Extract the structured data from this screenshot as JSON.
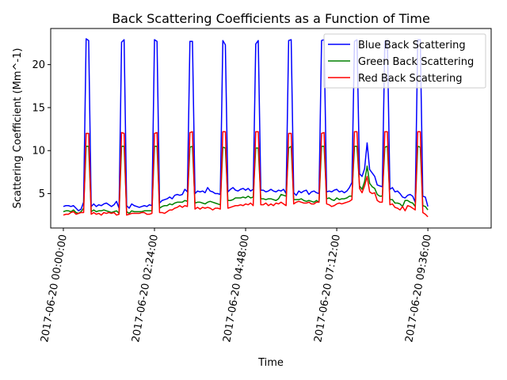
{
  "chart_data": {
    "type": "line",
    "title": "Back Scattering Coefficients as a Function of Time",
    "xlabel": "Time",
    "ylabel": "Scattering Coefficient (Mm^-1)",
    "x_start_label": "2017-06-20 00:00:00",
    "x_step_minutes": 4,
    "xlim_minutes": [
      -20,
      676
    ],
    "ylim": [
      1.0,
      24.2
    ],
    "yticks": [
      5,
      10,
      15,
      20
    ],
    "xticks": [
      {
        "minutes": 0,
        "label": "2017-06-20 00:00:00"
      },
      {
        "minutes": 144,
        "label": "2017-06-20 02:24:00"
      },
      {
        "minutes": 288,
        "label": "2017-06-20 04:48:00"
      },
      {
        "minutes": 432,
        "label": "2017-06-20 07:12:00"
      },
      {
        "minutes": 576,
        "label": "2017-06-20 09:36:00"
      }
    ],
    "legend_position": "upper right",
    "grid": false,
    "series": [
      {
        "name": "Blue Back Scattering",
        "color": "#0000ff",
        "values": [
          3.5,
          3.6,
          3.6,
          3.5,
          3.6,
          3.3,
          3.0,
          3.2,
          4.0,
          23.0,
          22.8,
          3.5,
          3.8,
          3.5,
          3.7,
          3.6,
          3.8,
          3.9,
          3.7,
          3.5,
          3.7,
          4.1,
          3.3,
          22.6,
          22.9,
          3.6,
          3.3,
          3.8,
          3.6,
          3.5,
          3.4,
          3.5,
          3.6,
          3.5,
          3.7,
          3.6,
          22.9,
          22.7,
          3.9,
          4.2,
          4.3,
          4.4,
          4.6,
          4.4,
          4.8,
          4.9,
          4.8,
          4.9,
          5.5,
          5.2,
          22.7,
          22.7,
          5.0,
          5.3,
          5.2,
          5.3,
          5.1,
          5.7,
          5.3,
          5.2,
          5.0,
          5.0,
          4.9,
          22.8,
          22.3,
          5.2,
          5.5,
          5.7,
          5.4,
          5.3,
          5.5,
          5.6,
          5.4,
          5.6,
          5.3,
          5.5,
          22.4,
          22.8,
          5.4,
          5.4,
          5.2,
          5.3,
          5.5,
          5.3,
          5.2,
          5.4,
          5.3,
          5.5,
          5.0,
          22.8,
          22.9,
          5.1,
          4.8,
          5.3,
          5.1,
          5.3,
          5.4,
          4.9,
          5.2,
          5.3,
          5.1,
          5.0,
          22.8,
          22.9,
          5.2,
          5.3,
          5.2,
          5.4,
          5.5,
          5.2,
          5.3,
          5.1,
          5.3,
          5.7,
          6.3,
          22.7,
          22.9,
          7.3,
          7.0,
          7.9,
          10.9,
          7.8,
          7.4,
          7.0,
          6.0,
          5.9,
          5.8,
          22.7,
          22.9,
          5.5,
          5.7,
          5.2,
          5.3,
          5.0,
          4.6,
          4.5,
          4.8,
          4.9,
          4.7,
          4.0,
          22.9,
          22.9,
          4.7,
          4.6,
          3.5
        ]
      },
      {
        "name": "Green Back Scattering",
        "color": "#008000",
        "values": [
          2.9,
          3.0,
          3.0,
          2.9,
          3.1,
          2.8,
          2.7,
          2.9,
          3.3,
          10.5,
          10.5,
          2.9,
          3.1,
          2.9,
          3.0,
          3.0,
          3.1,
          3.0,
          2.9,
          2.8,
          2.9,
          3.0,
          2.7,
          10.5,
          10.5,
          2.9,
          2.7,
          3.0,
          2.9,
          2.9,
          2.9,
          2.9,
          3.0,
          3.0,
          3.0,
          3.0,
          10.5,
          10.5,
          3.3,
          3.5,
          3.6,
          3.6,
          3.8,
          3.7,
          3.9,
          4.0,
          4.0,
          4.0,
          4.2,
          4.1,
          10.4,
          10.5,
          3.9,
          4.0,
          4.0,
          3.9,
          3.8,
          4.0,
          4.1,
          4.0,
          3.9,
          3.8,
          3.7,
          10.4,
          10.3,
          4.2,
          4.2,
          4.3,
          4.5,
          4.5,
          4.5,
          4.6,
          4.5,
          4.7,
          4.5,
          4.6,
          10.3,
          10.3,
          4.4,
          4.4,
          4.3,
          4.4,
          4.4,
          4.3,
          4.2,
          4.4,
          4.9,
          4.8,
          4.7,
          10.3,
          10.5,
          4.3,
          4.3,
          4.3,
          4.4,
          4.2,
          4.1,
          4.2,
          4.1,
          4.0,
          4.2,
          4.0,
          10.5,
          10.5,
          4.4,
          4.5,
          4.3,
          4.2,
          4.5,
          4.3,
          4.4,
          4.4,
          4.5,
          4.7,
          4.7,
          10.5,
          10.5,
          5.9,
          5.5,
          6.4,
          8.2,
          6.2,
          5.8,
          5.6,
          4.9,
          4.7,
          4.7,
          10.4,
          10.5,
          4.3,
          4.3,
          3.9,
          3.9,
          3.8,
          3.5,
          4.2,
          4.2,
          4.0,
          3.9,
          3.5,
          10.5,
          10.4,
          3.6,
          3.5,
          3.1
        ]
      },
      {
        "name": "Red Back Scattering",
        "color": "#ff0000",
        "values": [
          2.5,
          2.6,
          2.6,
          2.8,
          2.9,
          2.6,
          2.7,
          2.8,
          2.8,
          12.0,
          12.0,
          2.6,
          2.8,
          2.6,
          2.7,
          2.5,
          2.8,
          2.7,
          2.8,
          2.7,
          2.8,
          2.5,
          2.6,
          12.1,
          12.0,
          2.5,
          2.6,
          2.7,
          2.7,
          2.7,
          2.7,
          2.8,
          2.8,
          2.6,
          2.6,
          2.7,
          12.0,
          12.1,
          2.8,
          2.8,
          2.7,
          2.9,
          3.1,
          3.1,
          3.3,
          3.4,
          3.6,
          3.4,
          3.6,
          3.5,
          12.1,
          12.2,
          3.2,
          3.4,
          3.2,
          3.4,
          3.3,
          3.4,
          3.3,
          3.1,
          3.3,
          3.3,
          3.2,
          12.2,
          12.2,
          3.3,
          3.4,
          3.5,
          3.6,
          3.6,
          3.7,
          3.6,
          3.8,
          3.7,
          3.9,
          3.6,
          12.2,
          12.2,
          3.7,
          3.7,
          3.9,
          3.6,
          3.8,
          3.6,
          3.9,
          3.8,
          4.0,
          3.8,
          3.6,
          12.0,
          12.0,
          3.8,
          4.0,
          4.1,
          4.0,
          3.9,
          3.9,
          4.0,
          3.8,
          3.8,
          4.0,
          4.0,
          12.0,
          12.1,
          3.8,
          3.7,
          3.5,
          3.6,
          3.8,
          3.9,
          3.8,
          3.9,
          4.0,
          4.1,
          4.3,
          12.2,
          12.2,
          5.6,
          5.1,
          5.9,
          7.0,
          5.2,
          5.0,
          5.1,
          4.2,
          4.0,
          4.0,
          12.2,
          12.2,
          3.7,
          3.8,
          3.4,
          3.3,
          3.1,
          3.5,
          3.0,
          3.6,
          3.5,
          3.3,
          3.1,
          12.2,
          12.2,
          2.8,
          2.6,
          2.3
        ]
      }
    ]
  }
}
